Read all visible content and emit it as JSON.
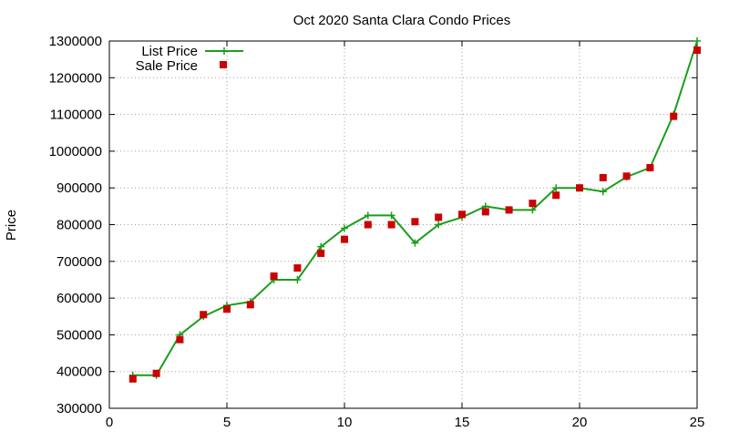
{
  "chart_data": {
    "type": "line",
    "title": "Oct 2020 Santa Clara Condo Prices",
    "xlabel": "",
    "ylabel": "Price",
    "xlim": [
      0,
      25
    ],
    "ylim": [
      300000,
      1300000
    ],
    "xticks": [
      0,
      5,
      10,
      15,
      20,
      25
    ],
    "yticks": [
      300000,
      400000,
      500000,
      600000,
      700000,
      800000,
      900000,
      1000000,
      1100000,
      1200000,
      1300000
    ],
    "grid": true,
    "legend_position": "top-left",
    "x": [
      1,
      2,
      3,
      4,
      5,
      6,
      7,
      8,
      9,
      10,
      11,
      12,
      13,
      14,
      15,
      16,
      17,
      18,
      19,
      20,
      21,
      22,
      23,
      24,
      25
    ],
    "series": [
      {
        "name": "List Price",
        "style": "line-plus",
        "color": "#1a9e1a",
        "values": [
          390000,
          390000,
          500000,
          550000,
          580000,
          590000,
          650000,
          650000,
          740000,
          790000,
          825000,
          825000,
          750000,
          800000,
          820000,
          850000,
          840000,
          840000,
          900000,
          900000,
          890000,
          930000,
          955000,
          1100000,
          1300000
        ]
      },
      {
        "name": "Sale Price",
        "style": "square-points",
        "color": "#cc0000",
        "values": [
          380000,
          395000,
          487000,
          555000,
          570000,
          582000,
          660000,
          682000,
          722000,
          760000,
          800000,
          800000,
          808000,
          820000,
          828000,
          835000,
          840000,
          858000,
          880000,
          900000,
          928000,
          932000,
          955000,
          1095000,
          1275000
        ]
      }
    ]
  }
}
